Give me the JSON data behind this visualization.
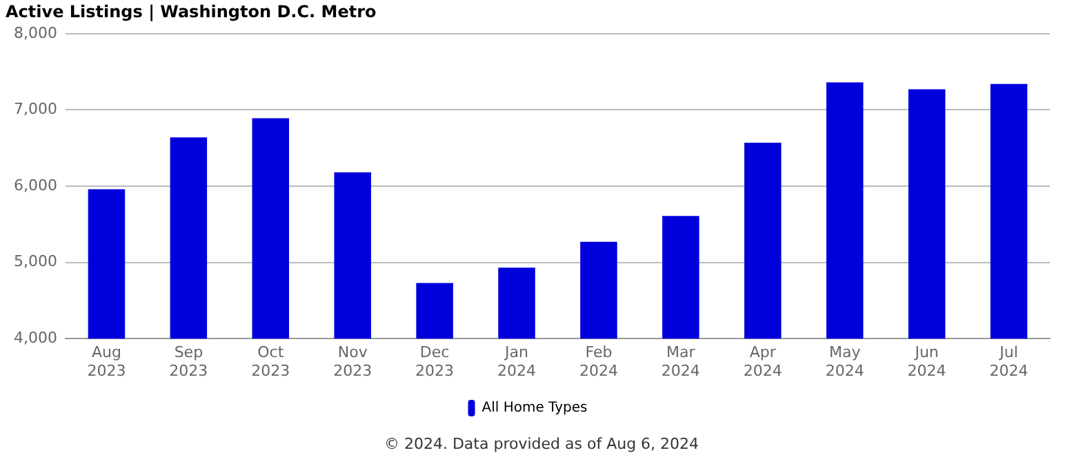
{
  "chart_data": {
    "type": "bar",
    "title": "Active Listings | Washington D.C. Metro",
    "categories": [
      "Aug 2023",
      "Sep 2023",
      "Oct 2023",
      "Nov 2023",
      "Dec 2023",
      "Jan 2024",
      "Feb 2024",
      "Mar 2024",
      "Apr 2024",
      "May 2024",
      "Jun 2024",
      "Jul 2024"
    ],
    "series": [
      {
        "name": "All Home Types",
        "color": "#0000dd",
        "values": [
          5960,
          6640,
          6890,
          6180,
          4730,
          4930,
          5270,
          5610,
          6570,
          7360,
          7270,
          7340
        ]
      }
    ],
    "ylim": [
      4000,
      8000
    ],
    "yticks": [
      {
        "value": 4000,
        "label": "4,000"
      },
      {
        "value": 5000,
        "label": "5,000"
      },
      {
        "value": 6000,
        "label": "6,000"
      },
      {
        "value": 7000,
        "label": "7,000"
      },
      {
        "value": 8000,
        "label": "8,000"
      }
    ],
    "grid": "y",
    "legend": "bottom",
    "annotations": [
      "© 2024. Data provided as of Aug 6, 2024"
    ]
  }
}
